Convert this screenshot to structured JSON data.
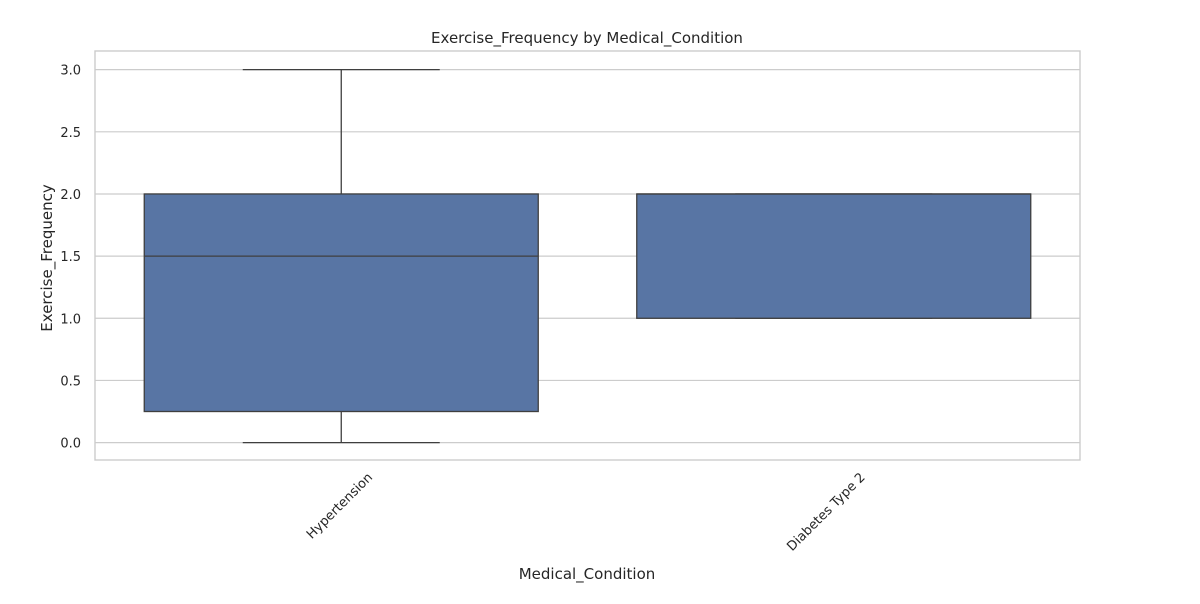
{
  "chart_data": {
    "type": "box",
    "title": "Exercise_Frequency by Medical_Condition",
    "xlabel": "Medical_Condition",
    "ylabel": "Exercise_Frequency",
    "categories": [
      "Hypertension",
      "Diabetes Type 2"
    ],
    "boxes": [
      {
        "category": "Hypertension",
        "whislo": 0.0,
        "q1": 0.25,
        "median": 1.5,
        "q3": 2.0,
        "whishi": 3.0
      },
      {
        "category": "Diabetes Type 2",
        "whislo": 1.0,
        "q1": 1.0,
        "median": 2.0,
        "q3": 2.0,
        "whishi": 2.0
      }
    ],
    "ylim": [
      -0.14,
      3.15
    ],
    "yticks": [
      0.0,
      0.5,
      1.0,
      1.5,
      2.0,
      2.5,
      3.0
    ],
    "ytick_labels": [
      "0.0",
      "0.5",
      "1.0",
      "1.5",
      "2.0",
      "2.5",
      "3.0"
    ],
    "grid": true,
    "box_color": "#5875a4",
    "line_color": "#3f3f3f",
    "grid_color": "#cccccc"
  }
}
